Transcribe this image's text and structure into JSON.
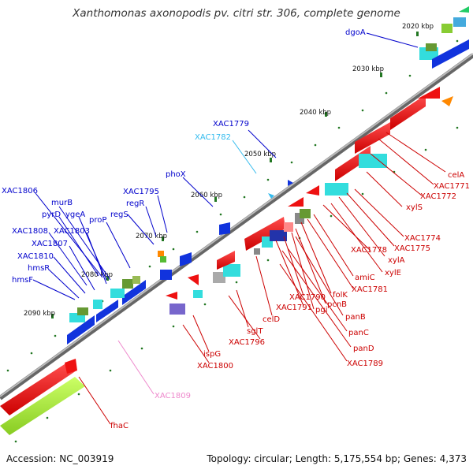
{
  "title": "Xanthomonas axonopodis pv. citri str. 306, complete genome",
  "footer": {
    "accession": "Accession: NC_003919",
    "stats": "Topology: circular; Length: 5,175,554 bp; Genes: 4,373"
  },
  "ticks": [
    "2020 kbp",
    "2030 kbp",
    "2040 kbp",
    "2050 kbp",
    "2060 kbp",
    "2070 kbp",
    "2080 kbp",
    "2090 kbp"
  ],
  "genes": {
    "blue": [
      "dgoA",
      "XAC1779",
      "phoX",
      "XAC1795",
      "regR",
      "regS",
      "proP",
      "XAC1806",
      "murB",
      "pyrD",
      "ygeA",
      "XAC1803",
      "XAC1808",
      "XAC1807",
      "XAC1810",
      "hmsR",
      "hmsF"
    ],
    "cyan": [
      "XAC1782"
    ],
    "pink": [
      "XAC1809"
    ],
    "red": [
      "celA",
      "XAC1771",
      "XAC1772",
      "xylS",
      "XAC1774",
      "XAC1775",
      "xylA",
      "xylE",
      "XAC1778",
      "amiC",
      "XAC1781",
      "folK",
      "pcnB",
      "XAC1790",
      "pgi",
      "panB",
      "XAC1791",
      "celD",
      "panC",
      "panD",
      "sglT",
      "XAC1796",
      "ispG",
      "XAC1800",
      "XAC1789",
      "fhaC"
    ]
  },
  "colors": {
    "blue_label": "#0000cc",
    "cyan_label": "#33bbee",
    "pink_label": "#ee88cc",
    "red_label": "#cc0000",
    "backbone": "#888888",
    "tick": "#227722"
  }
}
